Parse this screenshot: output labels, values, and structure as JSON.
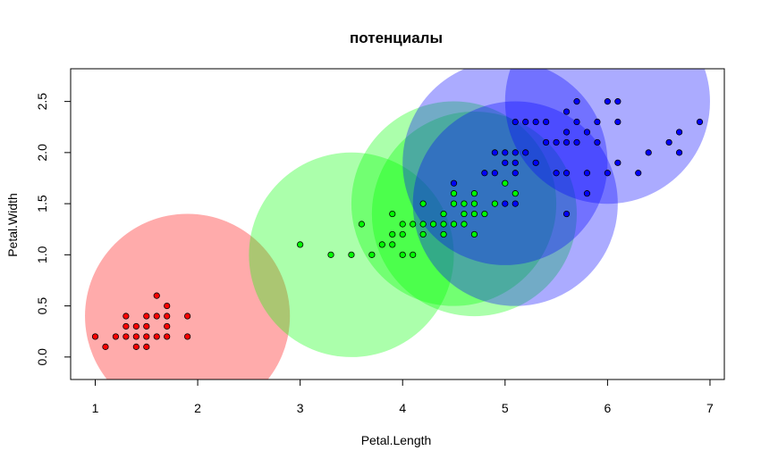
{
  "chart_data": {
    "type": "scatter",
    "title": "потенциалы",
    "xlabel": "Petal.Length",
    "ylabel": "Petal.Width",
    "xlim": [
      0.76,
      7.14
    ],
    "ylim": [
      -0.22,
      2.82
    ],
    "x_ticks": [
      1,
      2,
      3,
      4,
      5,
      6,
      7
    ],
    "y_ticks": [
      0.0,
      0.5,
      1.0,
      1.5,
      2.0,
      2.5
    ],
    "x_tick_labels": [
      "1",
      "2",
      "3",
      "4",
      "5",
      "6",
      "7"
    ],
    "y_tick_labels": [
      "0.0",
      "0.5",
      "1.0",
      "1.5",
      "2.0",
      "2.5"
    ],
    "grid": false,
    "potentials": [
      {
        "class": "red",
        "color": "#ff0000",
        "opacity": 0.33,
        "center": [
          1.9,
          0.4
        ],
        "radius": 1.0
      },
      {
        "class": "green",
        "color": "#00ff00",
        "opacity": 0.33,
        "center": [
          3.5,
          1.0
        ],
        "radius": 1.0
      },
      {
        "class": "green",
        "color": "#00ff00",
        "opacity": 0.33,
        "center": [
          4.5,
          1.5
        ],
        "radius": 1.0
      },
      {
        "class": "green",
        "color": "#00ff00",
        "opacity": 0.33,
        "center": [
          4.7,
          1.4
        ],
        "radius": 1.0
      },
      {
        "class": "blue",
        "color": "#0000ff",
        "opacity": 0.33,
        "center": [
          5.0,
          1.9
        ],
        "radius": 1.0
      },
      {
        "class": "blue",
        "color": "#0000ff",
        "opacity": 0.33,
        "center": [
          5.1,
          1.5
        ],
        "radius": 1.0
      },
      {
        "class": "blue",
        "color": "#0000ff",
        "opacity": 0.33,
        "center": [
          6.0,
          2.5
        ],
        "radius": 1.0
      }
    ],
    "series": [
      {
        "color": "#ff0000",
        "points": [
          [
            1.0,
            0.2
          ],
          [
            1.1,
            0.1
          ],
          [
            1.2,
            0.2
          ],
          [
            1.3,
            0.2
          ],
          [
            1.3,
            0.3
          ],
          [
            1.3,
            0.4
          ],
          [
            1.4,
            0.1
          ],
          [
            1.4,
            0.2
          ],
          [
            1.4,
            0.3
          ],
          [
            1.5,
            0.1
          ],
          [
            1.5,
            0.2
          ],
          [
            1.5,
            0.3
          ],
          [
            1.5,
            0.4
          ],
          [
            1.6,
            0.2
          ],
          [
            1.6,
            0.4
          ],
          [
            1.6,
            0.6
          ],
          [
            1.7,
            0.2
          ],
          [
            1.7,
            0.3
          ],
          [
            1.7,
            0.4
          ],
          [
            1.7,
            0.5
          ],
          [
            1.9,
            0.2
          ],
          [
            1.9,
            0.4
          ]
        ]
      },
      {
        "color": "#00ff00",
        "points": [
          [
            3.0,
            1.1
          ],
          [
            3.3,
            1.0
          ],
          [
            3.5,
            1.0
          ],
          [
            3.6,
            1.3
          ],
          [
            3.7,
            1.0
          ],
          [
            3.8,
            1.1
          ],
          [
            3.9,
            1.1
          ],
          [
            3.9,
            1.2
          ],
          [
            3.9,
            1.4
          ],
          [
            4.0,
            1.0
          ],
          [
            4.0,
            1.2
          ],
          [
            4.0,
            1.3
          ],
          [
            4.1,
            1.0
          ],
          [
            4.1,
            1.3
          ],
          [
            4.2,
            1.2
          ],
          [
            4.2,
            1.3
          ],
          [
            4.2,
            1.5
          ],
          [
            4.3,
            1.3
          ],
          [
            4.4,
            1.2
          ],
          [
            4.4,
            1.3
          ],
          [
            4.4,
            1.4
          ],
          [
            4.5,
            1.3
          ],
          [
            4.5,
            1.5
          ],
          [
            4.5,
            1.6
          ],
          [
            4.6,
            1.3
          ],
          [
            4.6,
            1.4
          ],
          [
            4.6,
            1.5
          ],
          [
            4.7,
            1.2
          ],
          [
            4.7,
            1.4
          ],
          [
            4.7,
            1.5
          ],
          [
            4.7,
            1.6
          ],
          [
            4.8,
            1.4
          ],
          [
            4.9,
            1.5
          ],
          [
            5.0,
            1.7
          ],
          [
            5.1,
            1.6
          ]
        ]
      },
      {
        "color": "#0000ff",
        "points": [
          [
            4.5,
            1.7
          ],
          [
            4.8,
            1.8
          ],
          [
            4.9,
            1.8
          ],
          [
            4.9,
            2.0
          ],
          [
            5.0,
            1.5
          ],
          [
            5.0,
            1.9
          ],
          [
            5.0,
            2.0
          ],
          [
            5.1,
            1.5
          ],
          [
            5.1,
            1.8
          ],
          [
            5.1,
            1.9
          ],
          [
            5.1,
            2.0
          ],
          [
            5.1,
            2.3
          ],
          [
            5.2,
            2.0
          ],
          [
            5.2,
            2.3
          ],
          [
            5.3,
            1.9
          ],
          [
            5.3,
            2.3
          ],
          [
            5.4,
            2.1
          ],
          [
            5.4,
            2.3
          ],
          [
            5.5,
            1.8
          ],
          [
            5.5,
            2.1
          ],
          [
            5.6,
            1.4
          ],
          [
            5.6,
            1.8
          ],
          [
            5.6,
            2.1
          ],
          [
            5.6,
            2.2
          ],
          [
            5.6,
            2.4
          ],
          [
            5.7,
            2.1
          ],
          [
            5.7,
            2.3
          ],
          [
            5.7,
            2.5
          ],
          [
            5.8,
            1.6
          ],
          [
            5.8,
            1.8
          ],
          [
            5.8,
            2.2
          ],
          [
            5.9,
            2.1
          ],
          [
            5.9,
            2.3
          ],
          [
            6.0,
            1.8
          ],
          [
            6.0,
            2.5
          ],
          [
            6.1,
            1.9
          ],
          [
            6.1,
            2.3
          ],
          [
            6.1,
            2.5
          ],
          [
            6.3,
            1.8
          ],
          [
            6.4,
            2.0
          ],
          [
            6.6,
            2.1
          ],
          [
            6.7,
            2.0
          ],
          [
            6.7,
            2.2
          ],
          [
            6.9,
            2.3
          ]
        ]
      }
    ]
  }
}
